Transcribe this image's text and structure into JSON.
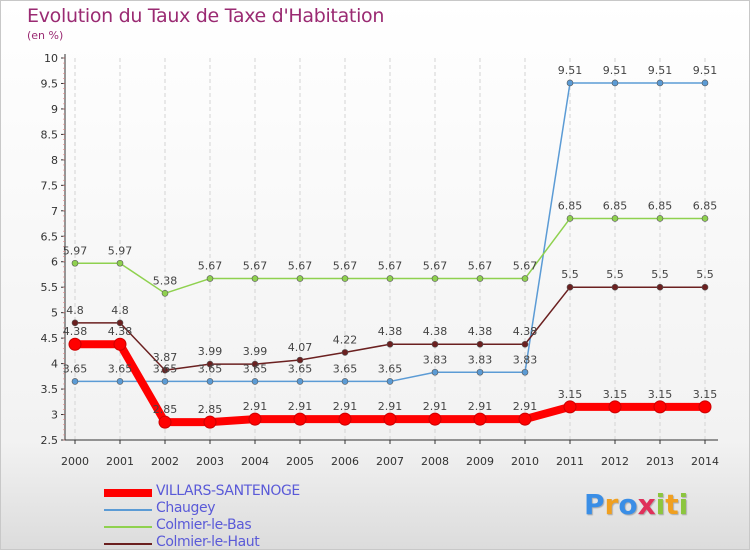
{
  "chart_data": {
    "type": "line",
    "title": "Evolution du Taux de Taxe d'Habitation",
    "subtitle": "(en %)",
    "x": [
      "2000",
      "2001",
      "2002",
      "2003",
      "2004",
      "2005",
      "2006",
      "2007",
      "2008",
      "2009",
      "2010",
      "2011",
      "2012",
      "2013",
      "2014"
    ],
    "ylim": [
      2.5,
      10
    ],
    "yticks": [
      "2.5",
      "3",
      "3.5",
      "4",
      "4.5",
      "5",
      "5.5",
      "6",
      "6.5",
      "7",
      "7.5",
      "8",
      "8.5",
      "9",
      "9.5",
      "10"
    ],
    "grid": "vertical-dashed",
    "legend_position": "bottom-left",
    "series": [
      {
        "name": "VILLARS-SANTENOGE",
        "color": "#ff0000",
        "values": [
          4.38,
          4.38,
          2.85,
          2.85,
          2.91,
          2.91,
          2.91,
          2.91,
          2.91,
          2.91,
          2.91,
          3.15,
          3.15,
          3.15,
          3.15
        ],
        "labels": [
          "4.38",
          "4.38",
          "2.85",
          "2.85",
          "2.91",
          "2.91",
          "2.91",
          "2.91",
          "2.91",
          "2.91",
          "2.91",
          "3.15",
          "3.15",
          "3.15",
          "3.15"
        ]
      },
      {
        "name": "Chaugey",
        "color": "#5b9bd5",
        "values": [
          3.65,
          3.65,
          3.65,
          3.65,
          3.65,
          3.65,
          3.65,
          3.65,
          3.83,
          3.83,
          3.83,
          9.51,
          9.51,
          9.51,
          9.51
        ],
        "labels": [
          "3.65",
          "3.65",
          "3.65",
          "3.65",
          "3.65",
          "3.65",
          "3.65",
          "3.65",
          "3.83",
          "3.83",
          "3.83",
          "9.51",
          "9.51",
          "9.51",
          "9.51"
        ]
      },
      {
        "name": "Colmier-le-Bas",
        "color": "#8fd14f",
        "values": [
          5.97,
          5.97,
          5.38,
          5.67,
          5.67,
          5.67,
          5.67,
          5.67,
          5.67,
          5.67,
          5.67,
          6.85,
          6.85,
          6.85,
          6.85
        ],
        "labels": [
          "5.97",
          "5.97",
          "5.38",
          "5.67",
          "5.67",
          "5.67",
          "5.67",
          "5.67",
          "5.67",
          "5.67",
          "5.67",
          "6.85",
          "6.85",
          "6.85",
          "6.85"
        ]
      },
      {
        "name": "Colmier-le-Haut",
        "color": "#6b2020",
        "values": [
          4.8,
          4.8,
          3.87,
          3.99,
          3.99,
          4.07,
          4.22,
          4.38,
          4.38,
          4.38,
          4.38,
          5.5,
          5.5,
          5.5,
          5.5
        ],
        "labels": [
          "4.8",
          "4.8",
          "3.87",
          "3.99",
          "3.99",
          "4.07",
          "4.22",
          "4.38",
          "4.38",
          "4.38",
          "4.38",
          "5.5",
          "5.5",
          "5.5",
          "5.5"
        ]
      }
    ]
  },
  "legend": {
    "items": [
      {
        "label": "VILLARS-SANTENOGE",
        "color": "#ff0000"
      },
      {
        "label": "Chaugey",
        "color": "#5b9bd5"
      },
      {
        "label": "Colmier-le-Bas",
        "color": "#8fd14f"
      },
      {
        "label": "Colmier-le-Haut",
        "color": "#6b2020"
      }
    ]
  },
  "brand": {
    "letters": [
      "P",
      "r",
      "o",
      "x",
      "i",
      "t",
      "i"
    ],
    "colors": [
      "#3a8ee6",
      "#f0a020",
      "#3a8ee6",
      "#e0305a",
      "#8cc63f",
      "#f0a020",
      "#8cc63f"
    ]
  }
}
